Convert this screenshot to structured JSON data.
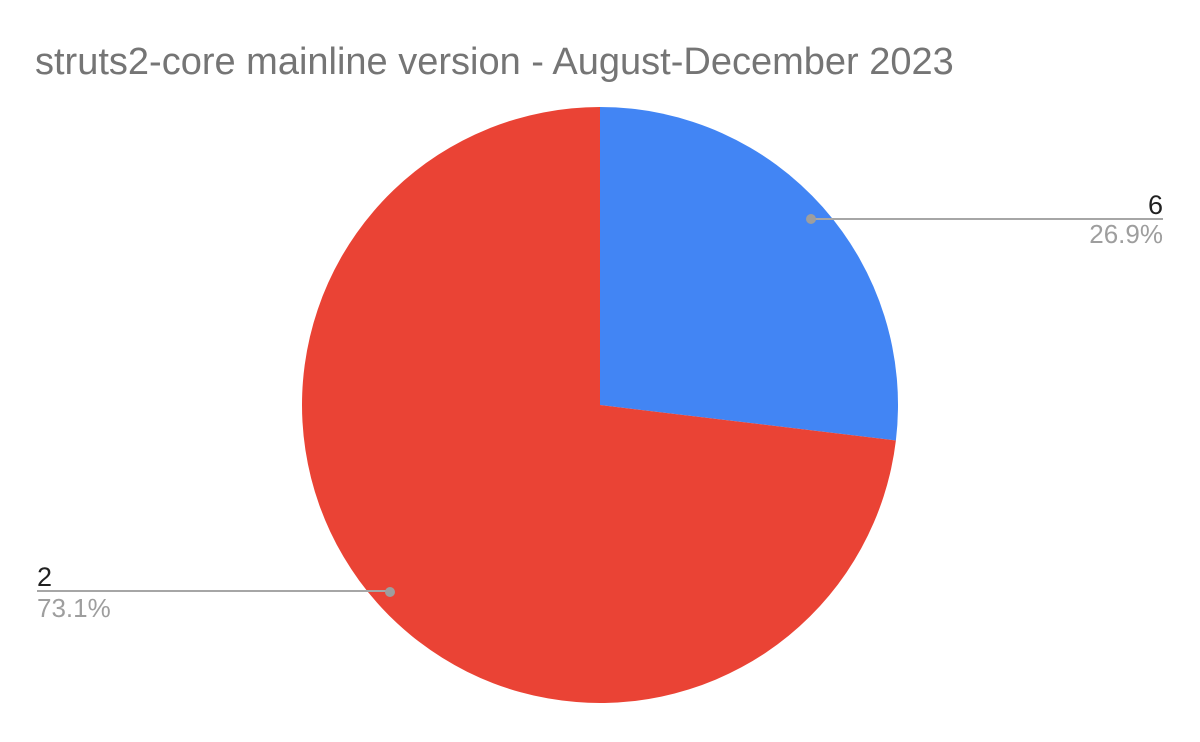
{
  "title": "struts2-core mainline version - August-December 2023",
  "chart_data": {
    "type": "pie",
    "title": "struts2-core mainline version - August-December 2023",
    "slices": [
      {
        "label": "6",
        "pct": 26.9,
        "pct_label": "26.9%",
        "color": "#4285f4"
      },
      {
        "label": "2",
        "pct": 73.1,
        "pct_label": "73.1%",
        "color": "#ea4335"
      }
    ],
    "start_angle_deg": 0,
    "direction": "clockwise",
    "legend_position": "none",
    "labels": "callouts-with-value-and-percent",
    "background": "#ffffff"
  },
  "styles": {
    "title_color": "#757575",
    "value_label_color": "#212121",
    "percent_label_color": "#9e9e9e",
    "callout_line_color": "#a6a6a6",
    "callout_dot_color": "#9e9e9e"
  }
}
